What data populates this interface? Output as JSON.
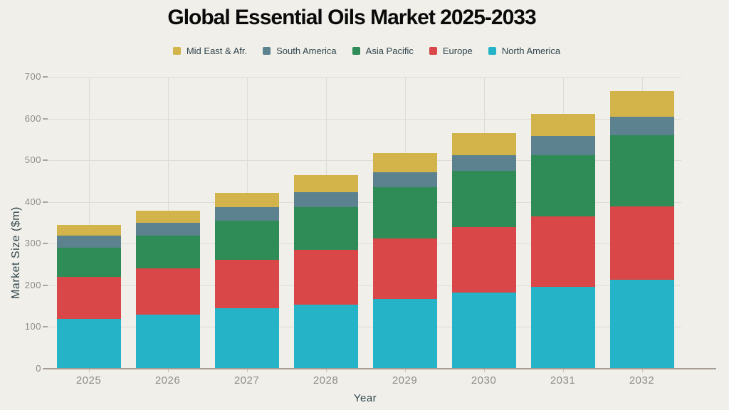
{
  "title": "Global Essential Oils Market 2025-2033",
  "colors": {
    "background": "#f0efe9",
    "grid": "#dedcd4",
    "axis_line": "#a59d94",
    "tick_text": "#8d8c86",
    "label_text": "#31454d",
    "title_text": "#0a0a0a"
  },
  "legend": {
    "order": [
      "Mid East & Afr.",
      "South America",
      "Asia Pacific",
      "Europe",
      "North America"
    ]
  },
  "chart_data": {
    "type": "bar",
    "stacked": true,
    "title": "Global Essential Oils Market 2025-2033",
    "xlabel": "Year",
    "ylabel": "Market Size ($m)",
    "categories": [
      "2025",
      "2026",
      "2027",
      "2028",
      "2029",
      "2030",
      "2031",
      "2032"
    ],
    "series": [
      {
        "name": "North America",
        "color": "#25b4c7",
        "values": [
          120,
          129,
          145,
          153,
          167,
          182,
          197,
          213
        ]
      },
      {
        "name": "Europe",
        "color": "#d94748",
        "values": [
          100,
          112,
          116,
          132,
          146,
          157,
          168,
          177
        ]
      },
      {
        "name": "Asia Pacific",
        "color": "#2f8c57",
        "values": [
          71,
          78,
          94,
          102,
          122,
          135,
          148,
          170
        ]
      },
      {
        "name": "South America",
        "color": "#5c8290",
        "values": [
          28,
          31,
          32,
          36,
          37,
          39,
          46,
          45
        ]
      },
      {
        "name": "Mid East & Afr.",
        "color": "#d2b44a",
        "values": [
          26,
          29,
          34,
          41,
          46,
          52,
          52,
          61
        ]
      }
    ],
    "totals": [
      345,
      379,
      421,
      464,
      518,
      565,
      611,
      666
    ],
    "ylim": [
      0,
      700
    ],
    "yticks": [
      0,
      100,
      200,
      300,
      400,
      500,
      600,
      700
    ],
    "grid": true,
    "legend_position": "top"
  }
}
